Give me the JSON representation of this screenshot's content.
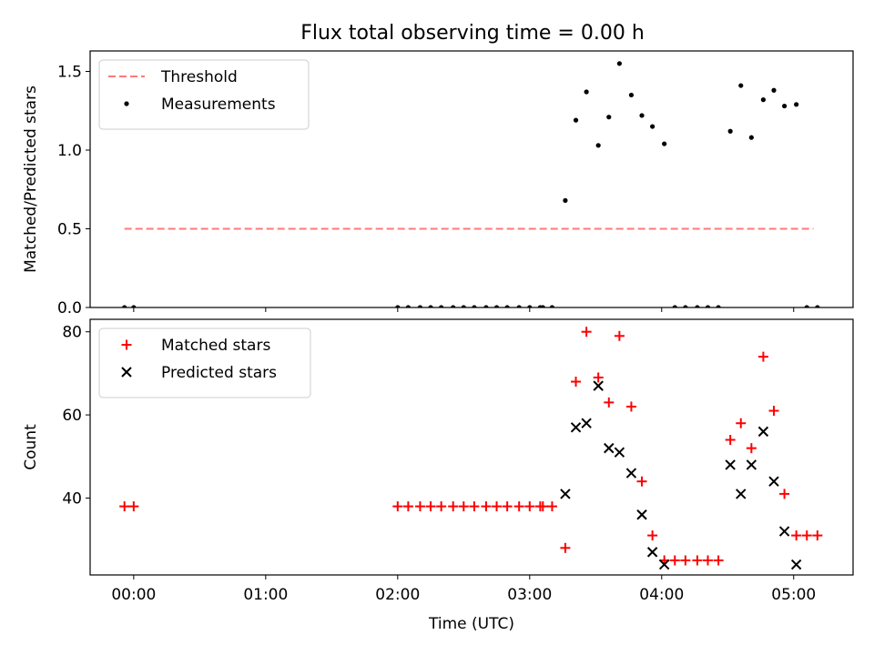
{
  "title": "Flux total observing time = 0.00 h",
  "chart_data": [
    {
      "type": "scatter",
      "ylabel": "Matched/Predicted stars",
      "xlim": [
        -0.33,
        5.45
      ],
      "ylim": [
        0,
        1.63
      ],
      "yticks": [
        "0.0",
        "0.5",
        "1.0",
        "1.5"
      ],
      "ytick_values": [
        0,
        0.5,
        1.0,
        1.5
      ],
      "legend_position": "upper-left",
      "threshold": {
        "name": "Threshold",
        "value": 0.5,
        "x_range": [
          -0.07,
          5.15
        ],
        "color": "#ff7a7a"
      },
      "series": [
        {
          "name": "Measurements",
          "color": "#000000",
          "x": [
            -0.07,
            0.0,
            2.0,
            2.08,
            2.17,
            2.25,
            2.33,
            2.42,
            2.5,
            2.58,
            2.67,
            2.75,
            2.83,
            2.92,
            3.0,
            3.08,
            3.1,
            3.17,
            3.27,
            3.35,
            3.43,
            3.52,
            3.6,
            3.68,
            3.77,
            3.85,
            3.93,
            4.02,
            4.1,
            4.18,
            4.27,
            4.35,
            4.43,
            4.52,
            4.6,
            4.68,
            4.77,
            4.85,
            4.93,
            5.02,
            5.1,
            5.18
          ],
          "y": [
            0,
            0,
            0,
            0,
            0,
            0,
            0,
            0,
            0,
            0,
            0,
            0,
            0,
            0,
            0,
            0,
            0,
            0,
            0.68,
            1.19,
            1.37,
            1.03,
            1.21,
            1.55,
            1.35,
            1.22,
            1.15,
            1.04,
            0,
            0,
            0,
            0,
            0,
            1.12,
            1.41,
            1.08,
            1.32,
            1.38,
            1.28,
            1.29,
            0,
            0
          ]
        }
      ]
    },
    {
      "type": "scatter",
      "ylabel": "Count",
      "xlabel": "Time (UTC)",
      "xlim": [
        -0.33,
        5.45
      ],
      "ylim": [
        21.5,
        83
      ],
      "yticks": [
        "40",
        "60",
        "80"
      ],
      "ytick_values": [
        40,
        60,
        80
      ],
      "xticks": [
        "00:00",
        "01:00",
        "02:00",
        "03:00",
        "04:00",
        "05:00"
      ],
      "xtick_values": [
        0,
        1,
        2,
        3,
        4,
        5
      ],
      "legend_position": "upper-left",
      "series": [
        {
          "name": "Matched stars",
          "marker": "plus",
          "color": "#ff0000",
          "x": [
            -0.07,
            0.0,
            2.0,
            2.08,
            2.17,
            2.25,
            2.33,
            2.42,
            2.5,
            2.58,
            2.67,
            2.75,
            2.83,
            2.92,
            3.0,
            3.08,
            3.1,
            3.17,
            3.27,
            3.35,
            3.43,
            3.52,
            3.6,
            3.68,
            3.77,
            3.85,
            3.93,
            4.02,
            4.1,
            4.18,
            4.27,
            4.35,
            4.43,
            4.52,
            4.6,
            4.68,
            4.77,
            4.85,
            4.93,
            5.02,
            5.1,
            5.18
          ],
          "y": [
            38,
            38,
            38,
            38,
            38,
            38,
            38,
            38,
            38,
            38,
            38,
            38,
            38,
            38,
            38,
            38,
            38,
            38,
            28,
            68,
            80,
            69,
            63,
            79,
            62,
            44,
            31,
            25,
            25,
            25,
            25,
            25,
            25,
            54,
            58,
            52,
            74,
            61,
            41,
            31,
            31,
            31
          ]
        },
        {
          "name": "Predicted stars",
          "marker": "x",
          "color": "#000000",
          "x": [
            3.27,
            3.35,
            3.43,
            3.52,
            3.6,
            3.68,
            3.77,
            3.85,
            3.93,
            4.02,
            4.52,
            4.6,
            4.68,
            4.77,
            4.85,
            4.93,
            5.02
          ],
          "y": [
            41,
            57,
            58,
            67,
            52,
            51,
            46,
            36,
            27,
            24,
            48,
            41,
            48,
            56,
            44,
            32,
            24
          ]
        }
      ]
    }
  ]
}
